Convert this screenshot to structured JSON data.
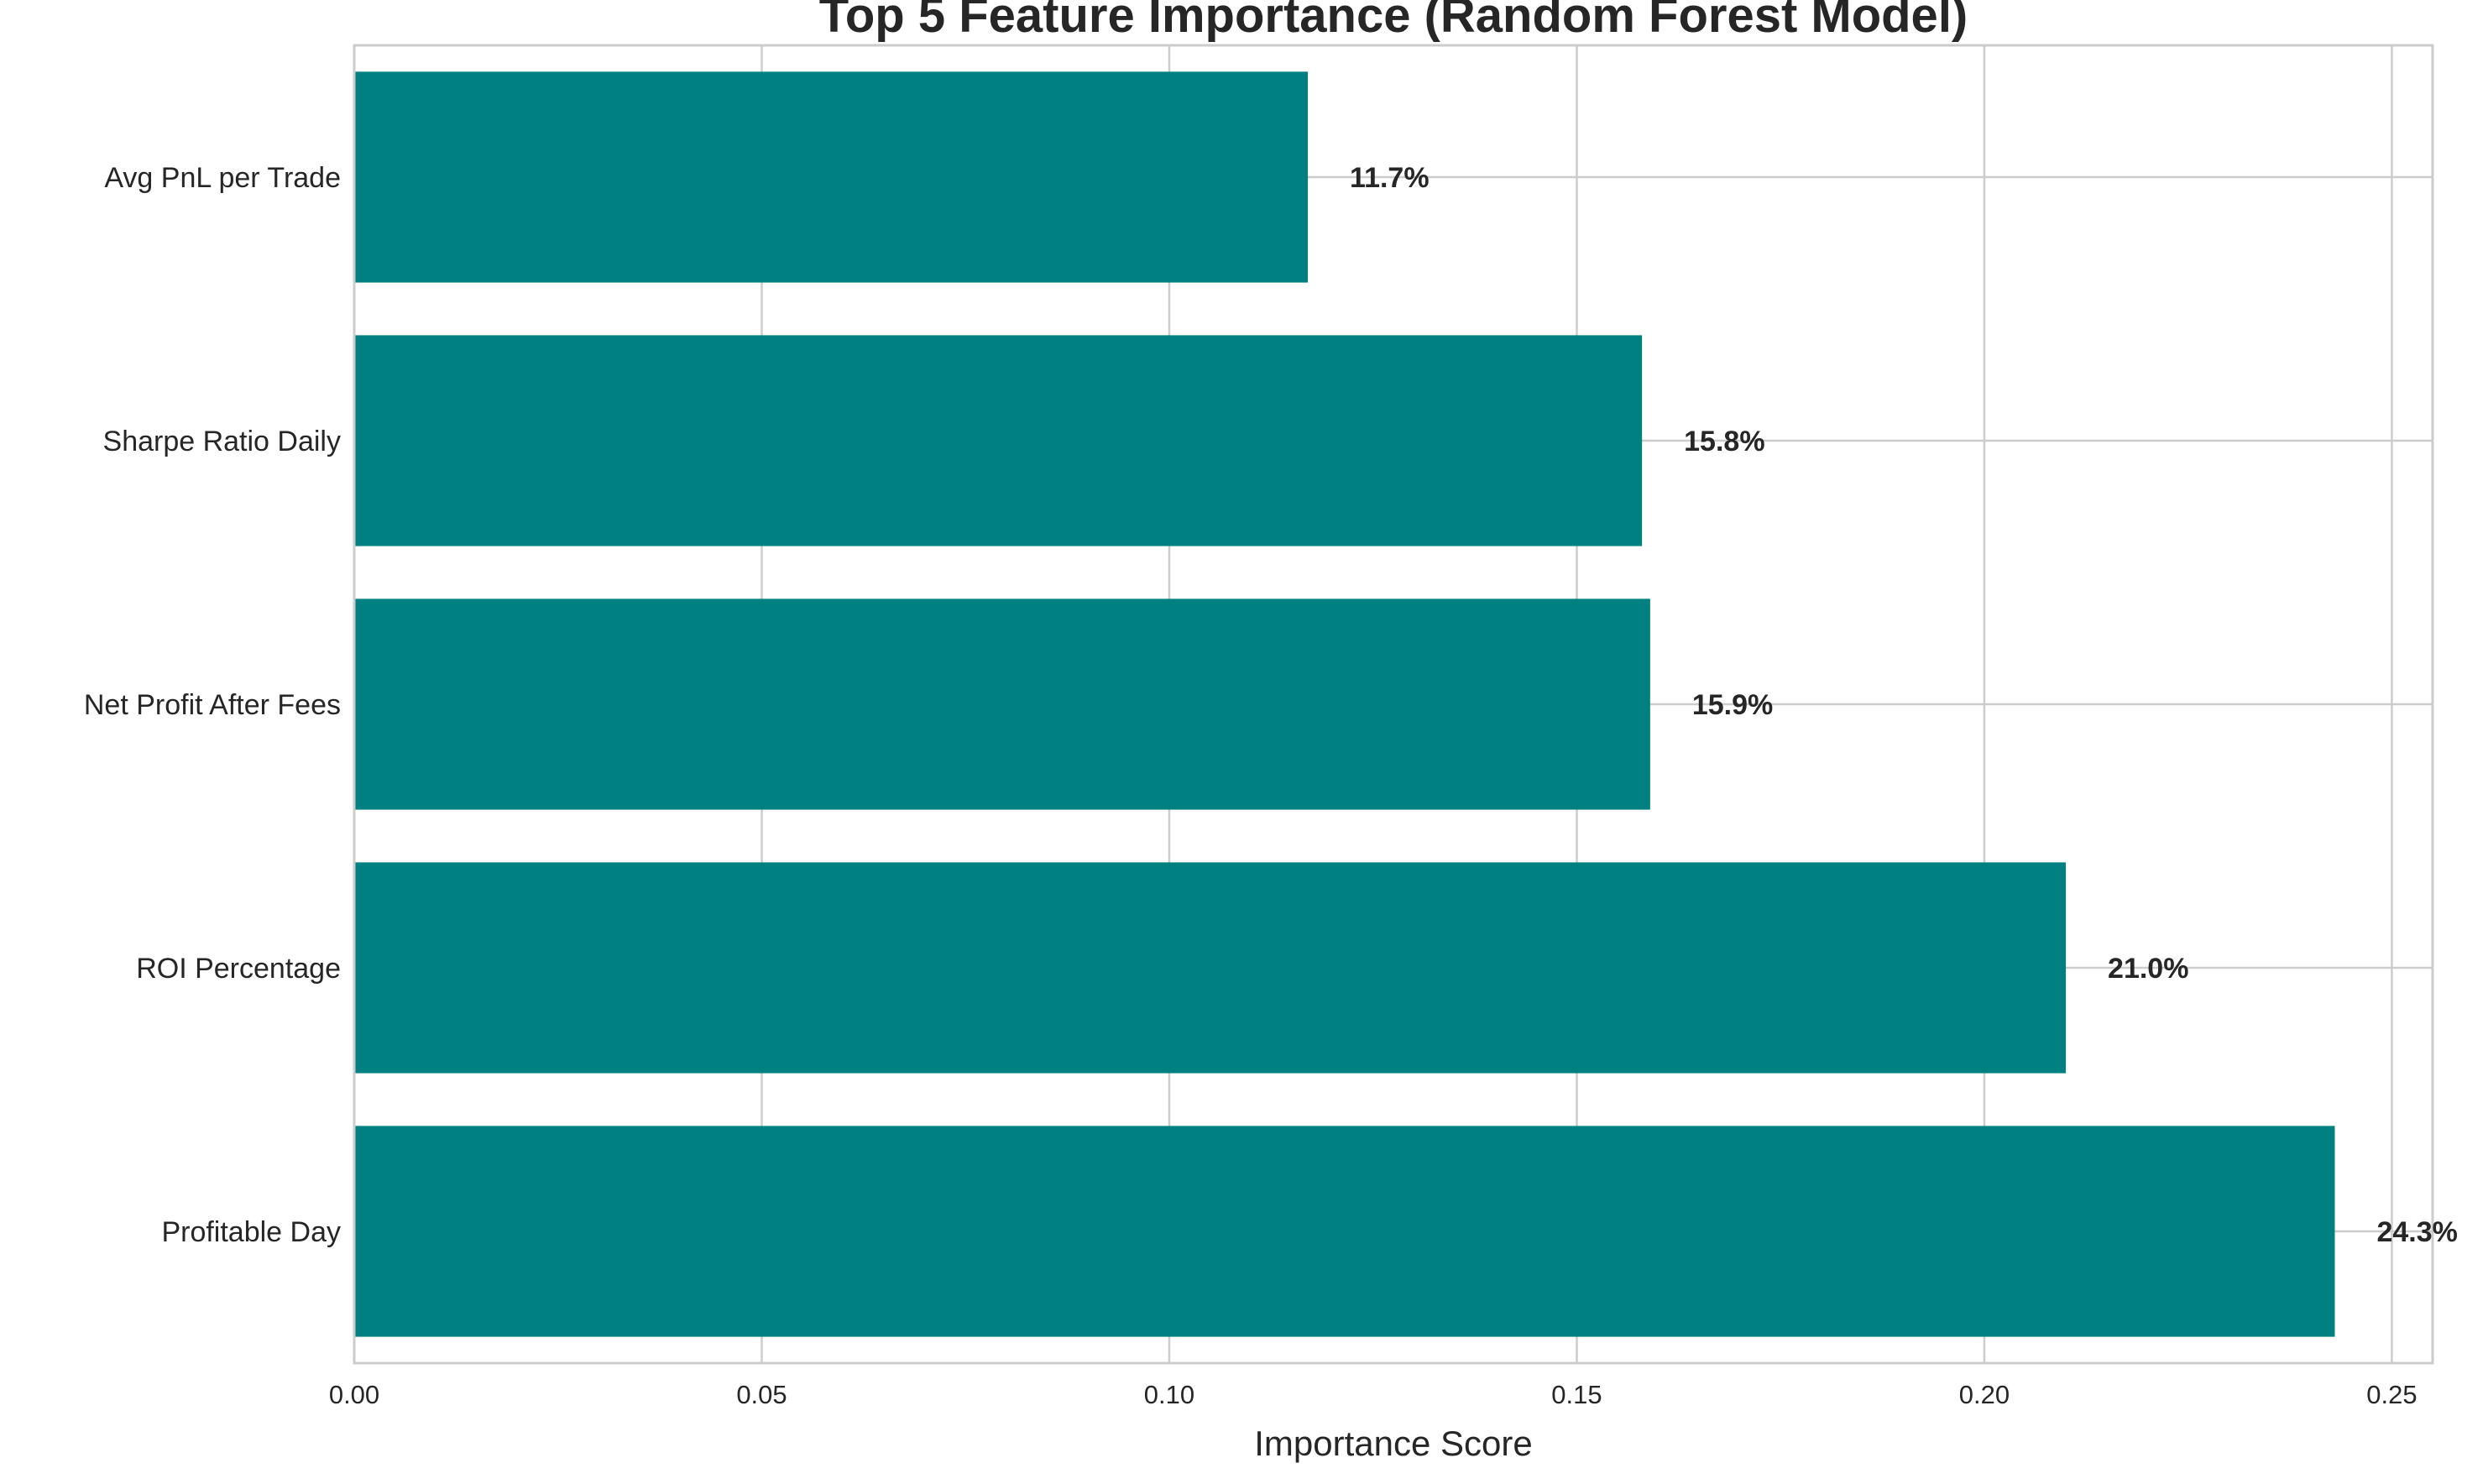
{
  "chart_data": {
    "type": "bar",
    "orientation": "horizontal",
    "title": "Top 5 Feature Importance (Random Forest Model)",
    "xlabel": "Importance Score",
    "ylabel": "",
    "categories": [
      "Avg PnL per Trade",
      "Sharpe Ratio Daily",
      "Net Profit After Fees",
      "ROI Percentage",
      "Profitable Day"
    ],
    "values": [
      0.117,
      0.158,
      0.159,
      0.21,
      0.243
    ],
    "data_labels": [
      "11.7%",
      "15.8%",
      "15.9%",
      "21.0%",
      "24.3%"
    ],
    "xlim": [
      0,
      0.255
    ],
    "xticks": [
      0.0,
      0.05,
      0.1,
      0.15,
      0.2,
      0.25
    ],
    "xtick_labels": [
      "0.00",
      "0.05",
      "0.10",
      "0.15",
      "0.20",
      "0.25"
    ],
    "grid": true,
    "bar_color": "#008080",
    "legend": "none"
  }
}
